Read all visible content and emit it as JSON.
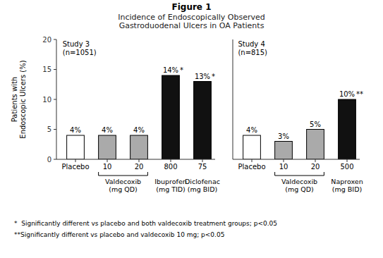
{
  "chart_data": [
    {
      "type": "bar",
      "title": "Figure 1",
      "subtitle": "Incidence of Endoscopically Observed\nGastroduodenal Ulcers in OA Patients",
      "ylabel": "Patients with\nEndoscopic Ulcers (%)",
      "annotation": "Study 3\n(n=1051)",
      "categories": [
        "Placebo",
        "10",
        "20",
        "800",
        "75"
      ],
      "values": [
        4,
        4,
        4,
        14,
        13
      ],
      "value_labels": [
        "4%",
        "4%",
        "4%",
        "14%",
        "13%"
      ],
      "data_labels": true,
      "colors": [
        "#ffffff",
        "#aaaaaa",
        "#aaaaaa",
        "#111111",
        "#111111"
      ],
      "annotations": [
        {
          "category": "800",
          "text": "*"
        },
        {
          "category": "75",
          "text": "*"
        }
      ],
      "groups": [
        {
          "label": "Valdecoxib\n(mg QD)",
          "categories": [
            "10",
            "20"
          ]
        },
        {
          "label": "Ibuprofen\n(mg TID)",
          "categories": [
            "800"
          ]
        },
        {
          "label": "Diclofenac\n(mg BID)",
          "categories": [
            "75"
          ]
        }
      ],
      "ylim": [
        0,
        20
      ],
      "yticks": [
        0,
        5,
        10,
        15,
        20
      ],
      "grid": false,
      "footnote": "*  Significantly different vs placebo and both valdecoxib treatment groups; p<0.05"
    },
    {
      "type": "bar",
      "annotation": "Study 4\n(n=815)",
      "categories": [
        "Placebo",
        "10",
        "20",
        "500"
      ],
      "values": [
        4,
        3,
        5,
        10
      ],
      "value_labels": [
        "4%",
        "3%",
        "5%",
        "10%"
      ],
      "data_labels": true,
      "colors": [
        "#ffffff",
        "#aaaaaa",
        "#aaaaaa",
        "#111111"
      ],
      "annotations": [
        {
          "category": "500",
          "text": "**"
        }
      ],
      "groups": [
        {
          "label": "Valdecoxib\n(mg QD)",
          "categories": [
            "10",
            "20"
          ]
        },
        {
          "label": "Naproxen\n(mg BID)",
          "categories": [
            "500"
          ]
        }
      ],
      "ylim": [
        0,
        20
      ],
      "tick_labels": "x",
      "grid": false,
      "footnote": "**Significantly different vs placebo and valdecoxib 10 mg; p<0.05"
    }
  ]
}
